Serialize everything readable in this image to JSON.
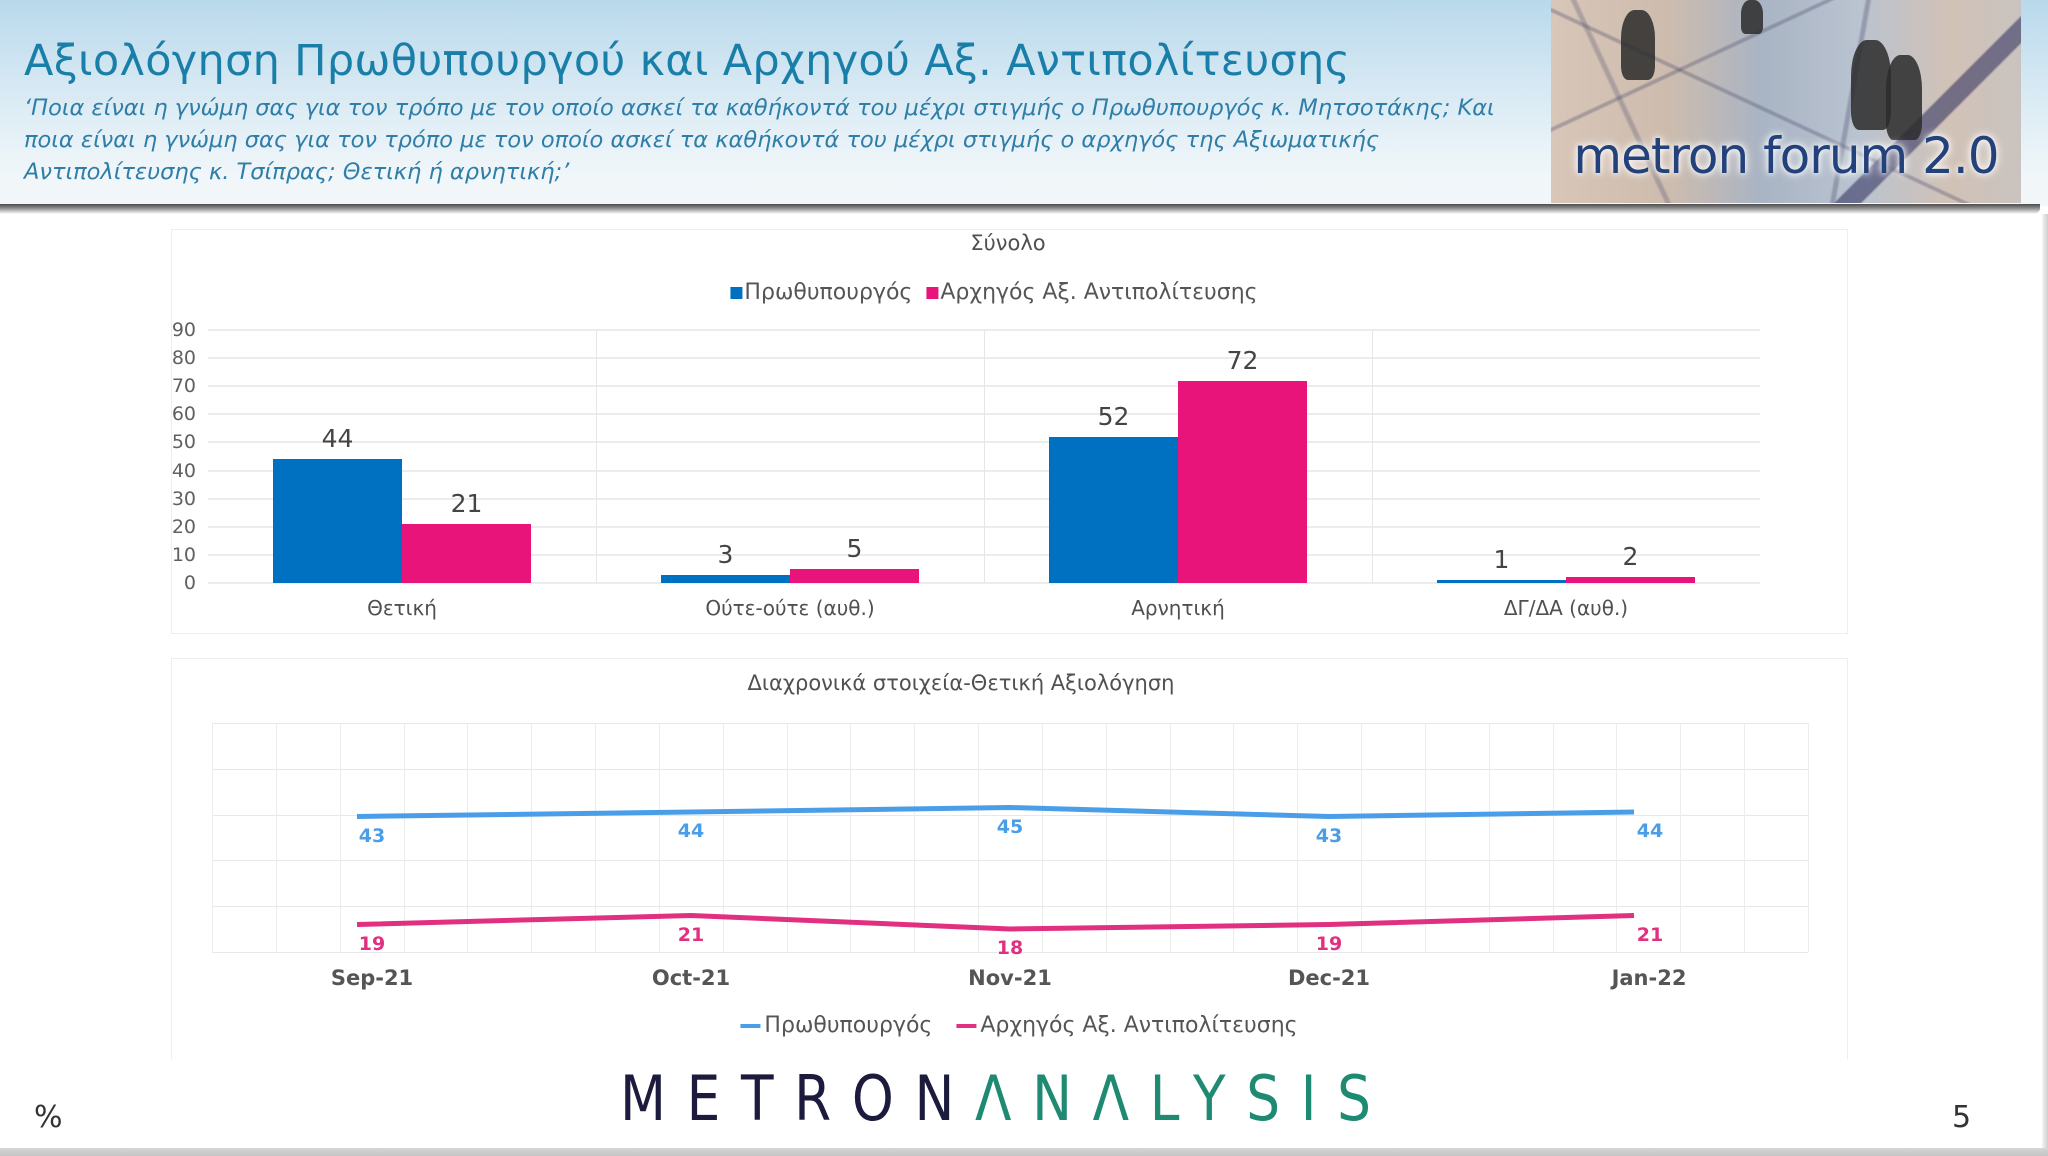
{
  "header": {
    "title": "Αξιολόγηση Πρωθυπουργού και Αρχηγού Αξ. Αντιπολίτευσης",
    "question_lines": [
      "‘Ποια είναι η γνώμη σας για τον τρόπο με τον οποίο ασκεί τα καθήκοντά του μέχρι στιγμής ο Πρωθυπουργός κ. Μητσοτάκης; Και",
      "ποια είναι η γνώμη σας για τον τρόπο με τον οποίο ασκεί τα καθήκοντά του μέχρι στιγμής ο αρχηγός της Αξιωματικής",
      "Αντιπολίτευσης κ. Τσίπρας; Θετική ή αρνητική;’"
    ],
    "image_label": "metron forum 2.0",
    "colors": {
      "title": "#1a7fa8",
      "question": "#2e7ea8"
    }
  },
  "colors": {
    "pm_bar": "#0070c0",
    "opp_bar": "#e8147a",
    "pm_line": "#4a9ee8",
    "opp_line": "#e0307f"
  },
  "chart_data": [
    {
      "type": "bar",
      "title": "Σύνολο",
      "xlabel": "",
      "ylabel": "",
      "ylim": [
        0,
        90
      ],
      "yticks": [
        0,
        10,
        20,
        30,
        40,
        50,
        60,
        70,
        80,
        90
      ],
      "grid": true,
      "legend_position": "top",
      "categories": [
        "Θετική",
        "Ούτε-ούτε (αυθ.)",
        "Αρνητική",
        "ΔΓ/ΔΑ (αυθ.)"
      ],
      "series": [
        {
          "name": "Πρωθυπουργός",
          "values": [
            44,
            3,
            52,
            1
          ],
          "color": "#0070c0"
        },
        {
          "name": "Αρχηγός Αξ. Αντιπολίτευσης",
          "values": [
            21,
            5,
            72,
            2
          ],
          "color": "#e8147a"
        }
      ]
    },
    {
      "type": "line",
      "title": "Διαχρονικά στοιχεία-Θετική Αξιολόγηση",
      "xlabel": "",
      "ylabel": "",
      "grid": true,
      "legend_position": "bottom",
      "x": [
        "Sep-21",
        "Oct-21",
        "Nov-21",
        "Dec-21",
        "Jan-22"
      ],
      "series": [
        {
          "name": "Πρωθυπουργός",
          "values": [
            43,
            44,
            45,
            43,
            44
          ],
          "color": "#4a9ee8"
        },
        {
          "name": "Αρχηγός Αξ. Αντιπολίτευσης",
          "values": [
            19,
            21,
            18,
            19,
            21
          ],
          "color": "#e0307f"
        }
      ]
    }
  ],
  "footer": {
    "unit": "%",
    "logo_part1": "METRON",
    "logo_part2": "ΛNΛLYSIS",
    "page_number": "5"
  }
}
